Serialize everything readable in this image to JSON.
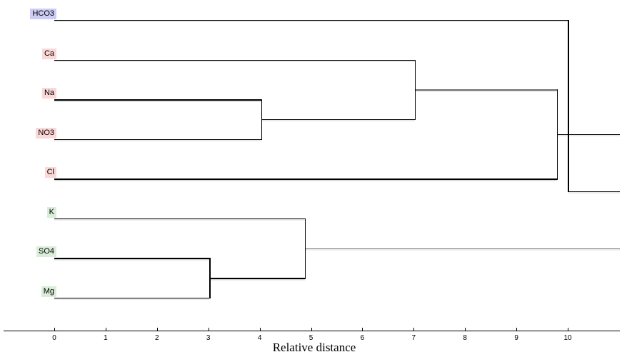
{
  "chart_data": {
    "type": "dendrogram",
    "title": "",
    "xlabel": "Relative distance",
    "xlim": [
      0,
      11
    ],
    "x_ticks": [
      "0",
      "1",
      "2",
      "3",
      "4",
      "5",
      "6",
      "7",
      "8",
      "9",
      "10"
    ],
    "orientation": "horizontal",
    "leaves": [
      {
        "label": "HCO3",
        "row": 0,
        "bg": "#ccccf7",
        "group": "blue"
      },
      {
        "label": "Ca",
        "row": 1,
        "bg": "#fbd7d7",
        "group": "red"
      },
      {
        "label": "Na",
        "row": 2,
        "bg": "#fbd7d7",
        "group": "red"
      },
      {
        "label": "NO3",
        "row": 3,
        "bg": "#fbd7d7",
        "group": "red"
      },
      {
        "label": "Cl",
        "row": 4,
        "bg": "#fbd7d7",
        "group": "red"
      },
      {
        "label": "K",
        "row": 5,
        "bg": "#d9edd9",
        "group": "green"
      },
      {
        "label": "SO4",
        "row": 6,
        "bg": "#d9edd9",
        "group": "green"
      },
      {
        "label": "Mg",
        "row": 7,
        "bg": "#d9edd9",
        "group": "green"
      }
    ],
    "merges": [
      {
        "cluster": [
          "SO4",
          "Mg"
        ],
        "distance": 3.0
      },
      {
        "cluster": [
          "Na",
          "NO3"
        ],
        "distance": 4.0
      },
      {
        "cluster": [
          "K",
          "SO4+Mg"
        ],
        "distance": 4.9
      },
      {
        "cluster": [
          "Ca",
          "Na+NO3"
        ],
        "distance": 7.0
      },
      {
        "cluster": [
          "Ca+Na+NO3",
          "Cl"
        ],
        "distance": 9.8
      },
      {
        "cluster": [
          "HCO3",
          "remaining-clusters"
        ],
        "distance": 10.0
      }
    ],
    "segments_h": [
      {
        "d1": 0,
        "d2": 10.0,
        "r": 0
      },
      {
        "d1": 0,
        "d2": 7.02,
        "r": 1
      },
      {
        "d1": 0,
        "d2": 4.03,
        "r": 2
      },
      {
        "d1": 0,
        "d2": 4.03,
        "r": 3
      },
      {
        "d1": 4.03,
        "d2": 7.02,
        "r": 2.5
      },
      {
        "d1": 7.02,
        "d2": 9.79,
        "r": 1.75,
        "c": "gray"
      },
      {
        "d1": 0,
        "d2": 9.79,
        "r": 4
      },
      {
        "d1": 9.79,
        "d2": 11.02,
        "r": 2.875
      },
      {
        "d1": 10.0,
        "d2": 11.02,
        "r": 4.3125
      },
      {
        "d1": 0,
        "d2": 4.88,
        "r": 5
      },
      {
        "d1": 0,
        "d2": 3.02,
        "r": 6
      },
      {
        "d1": 0,
        "d2": 3.02,
        "r": 7
      },
      {
        "d1": 3.02,
        "d2": 4.88,
        "r": 6.5
      },
      {
        "d1": 4.88,
        "d2": 11.02,
        "r": 5.75,
        "c": "gray"
      }
    ],
    "segments_v": [
      {
        "d": 10.0,
        "r1": 0,
        "r2": 4.3125
      },
      {
        "d": 7.02,
        "r1": 1,
        "r2": 2.5
      },
      {
        "d": 4.03,
        "r1": 2,
        "r2": 3
      },
      {
        "d": 9.79,
        "r1": 1.75,
        "r2": 4
      },
      {
        "d": 4.88,
        "r1": 5,
        "r2": 6.5
      },
      {
        "d": 3.02,
        "r1": 6,
        "r2": 7
      }
    ],
    "colors": {
      "line": "#000000",
      "faded_line": "#6e6e6e",
      "shadow": "#d6d6d6",
      "label_bg_blue": "#ccccf7",
      "label_bg_red": "#fbd7d7",
      "label_bg_green": "#d9edd9"
    }
  }
}
